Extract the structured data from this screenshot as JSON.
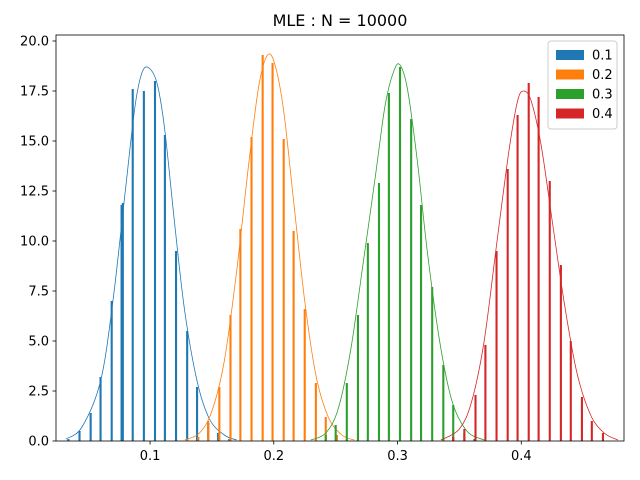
{
  "chart_data": {
    "type": "bar",
    "title": "MLE : N = 10000",
    "xlabel": "",
    "ylabel": "",
    "xlim": [
      0.024,
      0.483
    ],
    "ylim": [
      0,
      20.3
    ],
    "xticks": [
      0.1,
      0.2,
      0.3,
      0.4
    ],
    "xtick_labels": [
      "0.1",
      "0.2",
      "0.3",
      "0.4"
    ],
    "yticks": [
      0,
      2.5,
      5,
      7.5,
      10,
      12.5,
      15,
      17.5,
      20
    ],
    "ytick_labels": [
      "0.0",
      "2.5",
      "5.0",
      "7.5",
      "10.0",
      "12.5",
      "15.0",
      "17.5",
      "20.0"
    ],
    "bar_width": 0.0017,
    "legend_position": "top-right",
    "series": [
      {
        "name": "0.1",
        "color": "#1f77b4",
        "bars": [
          {
            "x": 0.034,
            "y": 0.1
          },
          {
            "x": 0.043,
            "y": 0.5
          },
          {
            "x": 0.052,
            "y": 1.4
          },
          {
            "x": 0.06,
            "y": 3.2
          },
          {
            "x": 0.069,
            "y": 7.0
          },
          {
            "x": 0.077,
            "y": 11.8
          },
          {
            "x": 0.078,
            "y": 11.9
          },
          {
            "x": 0.086,
            "y": 17.6
          },
          {
            "x": 0.095,
            "y": 17.5
          },
          {
            "x": 0.104,
            "y": 18.0
          },
          {
            "x": 0.112,
            "y": 15.3
          },
          {
            "x": 0.121,
            "y": 9.5
          },
          {
            "x": 0.13,
            "y": 5.5
          },
          {
            "x": 0.138,
            "y": 2.7
          },
          {
            "x": 0.147,
            "y": 0.9
          },
          {
            "x": 0.155,
            "y": 0.4
          },
          {
            "x": 0.164,
            "y": 0.1
          }
        ],
        "curve": [
          [
            0.032,
            0.1
          ],
          [
            0.045,
            0.7
          ],
          [
            0.06,
            3.0
          ],
          [
            0.07,
            7.0
          ],
          [
            0.08,
            12.5
          ],
          [
            0.088,
            16.8
          ],
          [
            0.094,
            18.5
          ],
          [
            0.1,
            18.6
          ],
          [
            0.106,
            17.8
          ],
          [
            0.112,
            15.5
          ],
          [
            0.12,
            10.8
          ],
          [
            0.128,
            6.5
          ],
          [
            0.138,
            3.0
          ],
          [
            0.148,
            1.1
          ],
          [
            0.16,
            0.3
          ],
          [
            0.17,
            0.05
          ]
        ]
      },
      {
        "name": "0.2",
        "color": "#ff7f0e",
        "bars": [
          {
            "x": 0.13,
            "y": 0.1
          },
          {
            "x": 0.139,
            "y": 0.2
          },
          {
            "x": 0.147,
            "y": 1.0
          },
          {
            "x": 0.156,
            "y": 2.7
          },
          {
            "x": 0.165,
            "y": 6.3
          },
          {
            "x": 0.173,
            "y": 10.6
          },
          {
            "x": 0.182,
            "y": 15.2
          },
          {
            "x": 0.191,
            "y": 19.3
          },
          {
            "x": 0.199,
            "y": 18.9
          },
          {
            "x": 0.208,
            "y": 15.1
          },
          {
            "x": 0.216,
            "y": 10.5
          },
          {
            "x": 0.225,
            "y": 6.6
          },
          {
            "x": 0.234,
            "y": 2.9
          },
          {
            "x": 0.242,
            "y": 1.2
          },
          {
            "x": 0.251,
            "y": 0.3
          },
          {
            "x": 0.259,
            "y": 0.1
          }
        ],
        "curve": [
          [
            0.128,
            0.05
          ],
          [
            0.14,
            0.4
          ],
          [
            0.15,
            1.5
          ],
          [
            0.16,
            4.0
          ],
          [
            0.17,
            8.5
          ],
          [
            0.18,
            14.0
          ],
          [
            0.188,
            17.8
          ],
          [
            0.195,
            19.3
          ],
          [
            0.201,
            18.8
          ],
          [
            0.208,
            16.5
          ],
          [
            0.216,
            12.0
          ],
          [
            0.225,
            7.0
          ],
          [
            0.234,
            3.3
          ],
          [
            0.244,
            1.2
          ],
          [
            0.255,
            0.3
          ],
          [
            0.265,
            0.05
          ]
        ]
      },
      {
        "name": "0.3",
        "color": "#2ca02c",
        "bars": [
          {
            "x": 0.242,
            "y": 0.3
          },
          {
            "x": 0.25,
            "y": 0.8
          },
          {
            "x": 0.259,
            "y": 2.9
          },
          {
            "x": 0.268,
            "y": 6.3
          },
          {
            "x": 0.276,
            "y": 9.9
          },
          {
            "x": 0.285,
            "y": 12.9
          },
          {
            "x": 0.293,
            "y": 17.4
          },
          {
            "x": 0.302,
            "y": 18.7
          },
          {
            "x": 0.311,
            "y": 16.1
          },
          {
            "x": 0.319,
            "y": 11.8
          },
          {
            "x": 0.328,
            "y": 7.7
          },
          {
            "x": 0.337,
            "y": 3.8
          },
          {
            "x": 0.345,
            "y": 1.8
          },
          {
            "x": 0.354,
            "y": 0.4
          },
          {
            "x": 0.362,
            "y": 0.1
          }
        ],
        "curve": [
          [
            0.23,
            0.05
          ],
          [
            0.242,
            0.4
          ],
          [
            0.252,
            1.6
          ],
          [
            0.262,
            4.5
          ],
          [
            0.272,
            8.8
          ],
          [
            0.282,
            13.2
          ],
          [
            0.29,
            16.8
          ],
          [
            0.297,
            18.5
          ],
          [
            0.302,
            18.8
          ],
          [
            0.308,
            17.6
          ],
          [
            0.316,
            14.0
          ],
          [
            0.324,
            9.5
          ],
          [
            0.334,
            5.0
          ],
          [
            0.344,
            2.0
          ],
          [
            0.356,
            0.5
          ],
          [
            0.37,
            0.05
          ]
        ]
      },
      {
        "name": "0.4",
        "color": "#d62728",
        "bars": [
          {
            "x": 0.345,
            "y": 0.2
          },
          {
            "x": 0.354,
            "y": 0.6
          },
          {
            "x": 0.363,
            "y": 2.3
          },
          {
            "x": 0.371,
            "y": 4.8
          },
          {
            "x": 0.38,
            "y": 9.5
          },
          {
            "x": 0.389,
            "y": 13.6
          },
          {
            "x": 0.397,
            "y": 16.3
          },
          {
            "x": 0.406,
            "y": 17.9
          },
          {
            "x": 0.414,
            "y": 17.2
          },
          {
            "x": 0.423,
            "y": 13.0
          },
          {
            "x": 0.432,
            "y": 8.8
          },
          {
            "x": 0.44,
            "y": 5.0
          },
          {
            "x": 0.449,
            "y": 2.2
          },
          {
            "x": 0.457,
            "y": 1.0
          },
          {
            "x": 0.466,
            "y": 0.4
          }
        ],
        "curve": [
          [
            0.335,
            0.05
          ],
          [
            0.35,
            0.6
          ],
          [
            0.36,
            2.0
          ],
          [
            0.37,
            5.0
          ],
          [
            0.38,
            9.8
          ],
          [
            0.39,
            14.5
          ],
          [
            0.397,
            17.0
          ],
          [
            0.402,
            17.5
          ],
          [
            0.408,
            17.0
          ],
          [
            0.416,
            14.8
          ],
          [
            0.425,
            11.0
          ],
          [
            0.435,
            6.8
          ],
          [
            0.445,
            3.4
          ],
          [
            0.456,
            1.3
          ],
          [
            0.467,
            0.4
          ],
          [
            0.478,
            0.05
          ]
        ]
      }
    ]
  }
}
